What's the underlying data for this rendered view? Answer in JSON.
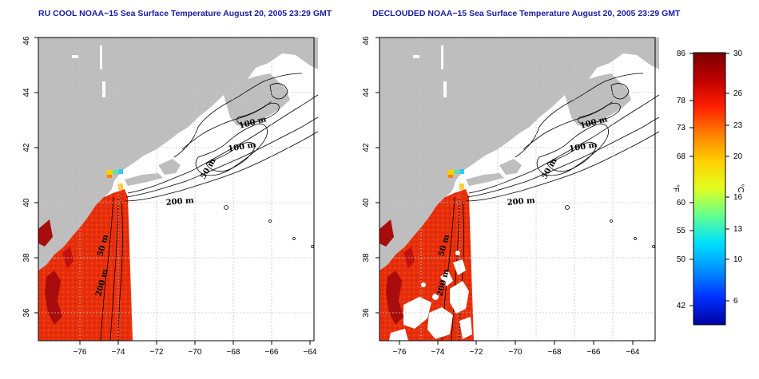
{
  "panels": [
    {
      "title": "RU COOL NOAA−15 Sea Surface Temperature August 20, 2005 23:29 GMT",
      "contour_labels": [
        "100 m",
        "100 m",
        "50 m",
        "200 m",
        "50 m",
        "200 m"
      ]
    },
    {
      "title": "DECLOUDED NOAA−15 Sea Surface Temperature August 20, 2005 23:29 GMT",
      "contour_labels": [
        "100 m",
        "100 m",
        "50 m",
        "200 m",
        "50 m",
        "200 m"
      ]
    }
  ],
  "x_ticks": [
    "−76",
    "−74",
    "−72",
    "−70",
    "−68",
    "−66",
    "−64"
  ],
  "y_ticks": [
    "36",
    "38",
    "40",
    "42",
    "44",
    "46"
  ],
  "colorbar": {
    "f_unit": "°F",
    "c_unit": "°C",
    "f_labels": [
      "86",
      "78",
      "73",
      "68",
      "60",
      "55",
      "50",
      "42"
    ],
    "c_labels": [
      "30",
      "26",
      "23",
      "20",
      "16",
      "13",
      "10",
      "6"
    ],
    "colors": [
      "#7a0000",
      "#c00000",
      "#ff2000",
      "#ff8000",
      "#ffd000",
      "#e0ff20",
      "#60ff90",
      "#00e0ff",
      "#0090ff",
      "#0030ff",
      "#0000a0"
    ]
  },
  "colors": {
    "land": "#bebebe",
    "sst_warm": "#e82a0a",
    "sst_hot": "#b01010",
    "title": "#1a1aa0"
  }
}
